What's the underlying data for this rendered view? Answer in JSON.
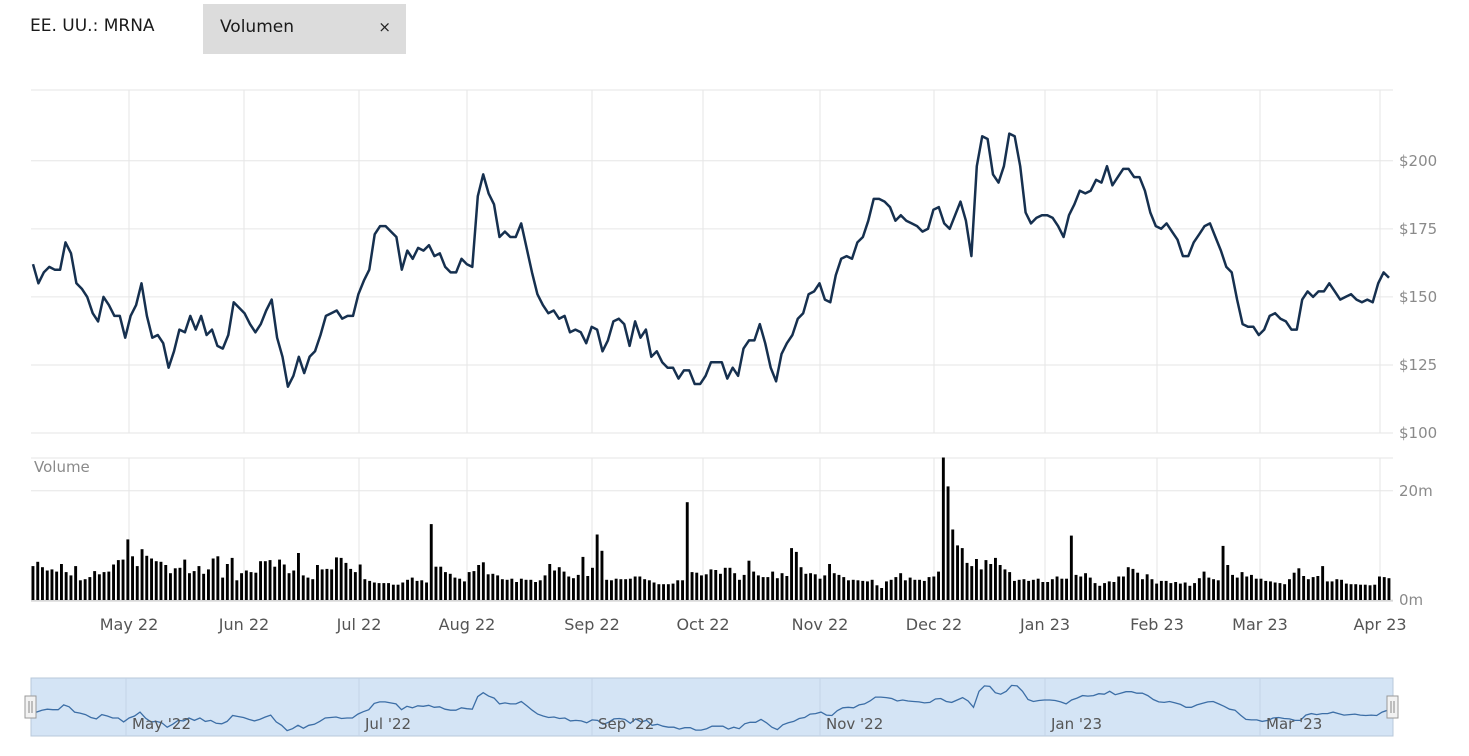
{
  "header": {
    "ticker": "EE. UU.: MRNA",
    "indicator_label": "Volumen",
    "indicator_close": "×"
  },
  "colors": {
    "price_line": "#16304f",
    "volume_bar": "#000000",
    "navigator_fill": "#d4e4f5",
    "navigator_line": "#3c6ea6"
  },
  "chart_data": [
    {
      "type": "line",
      "series": [
        {
          "name": "",
          "values": [
            162,
            155,
            159,
            161,
            160,
            160,
            170,
            166,
            155,
            153,
            150,
            144,
            141,
            150,
            147,
            143,
            143,
            135,
            143,
            147,
            155,
            143,
            135,
            136,
            133,
            124,
            130,
            138,
            137,
            143,
            138,
            143,
            136,
            138,
            132,
            131,
            136,
            148,
            146,
            144,
            140,
            137,
            140,
            145,
            149,
            135,
            128,
            117,
            121,
            128,
            122,
            128,
            130,
            136,
            143,
            144,
            145,
            142,
            143,
            143,
            151,
            156,
            160,
            173,
            176,
            176,
            174,
            172,
            160,
            167,
            164,
            168,
            167,
            169,
            165,
            166,
            161,
            159,
            159,
            164,
            162,
            161,
            187,
            195,
            188,
            184,
            172,
            174,
            172,
            172,
            177,
            168,
            159,
            151,
            147,
            144,
            145,
            142,
            143,
            137,
            138,
            137,
            133,
            139,
            138,
            130,
            134,
            141,
            142,
            140,
            132,
            141,
            135,
            138,
            128,
            130,
            126,
            124,
            124,
            120,
            123,
            123,
            118,
            118,
            121,
            126,
            126,
            126,
            120,
            124,
            121,
            131,
            134,
            134,
            140,
            133,
            124,
            119,
            129,
            133,
            136,
            142,
            144,
            151,
            152,
            155,
            149,
            148,
            158,
            164,
            165,
            164,
            170,
            172,
            178,
            186,
            186,
            185,
            183,
            178,
            180,
            178,
            177,
            176,
            174,
            175,
            182,
            183,
            177,
            175,
            180,
            185,
            178,
            165,
            198,
            209,
            208,
            195,
            192,
            198,
            210,
            209,
            198,
            181,
            177,
            179,
            180,
            180,
            179,
            176,
            172,
            180,
            184,
            189,
            188,
            189,
            193,
            192,
            198,
            191,
            194,
            197,
            197,
            194,
            194,
            189,
            181,
            176,
            175,
            177,
            174,
            171,
            165,
            165,
            170,
            173,
            176,
            177,
            172,
            167,
            161,
            159,
            149,
            140,
            139,
            139,
            136,
            138,
            143,
            144,
            142,
            141,
            138,
            138,
            149,
            152,
            150,
            152,
            152,
            155,
            152,
            149,
            150,
            151,
            149,
            148,
            149,
            148,
            155,
            159,
            157
          ]
        }
      ],
      "x_range": [
        "2022-04-08",
        "2023-04-03"
      ],
      "x_ticks": [
        "May 22",
        "Jun 22",
        "Jul 22",
        "Aug 22",
        "Sep 22",
        "Oct 22",
        "Nov 22",
        "Dec 22",
        "Jan 23",
        "Feb 23",
        "Mar 23",
        "Apr 23"
      ],
      "y_ticks": [
        "$100",
        "$125",
        "$150",
        "$175",
        "$200"
      ],
      "ylim": [
        100,
        226
      ],
      "grid": true,
      "legend": false
    },
    {
      "type": "bar",
      "title": "Volume",
      "y_ticks": [
        "0m",
        "20m"
      ],
      "ylim": [
        0,
        26
      ],
      "unit": "millions",
      "series": [
        {
          "name": "",
          "values": [
            6.2,
            7,
            6,
            5.4,
            5.6,
            5.2,
            6.6,
            5.1,
            4.5,
            6.2,
            3.6,
            3.8,
            4.2,
            5.3,
            4.7,
            5.1,
            5.2,
            6.5,
            7.3,
            7.4,
            11.1,
            8,
            6.2,
            9.3,
            8.1,
            7.6,
            7.1,
            7,
            6.4,
            4.9,
            5.8,
            5.9,
            7.4,
            4.9,
            5.3,
            6.2,
            4.8,
            5.6,
            7.6,
            8,
            4.1,
            6.6,
            7.7,
            3.6,
            4.9,
            5.4,
            5.1,
            5,
            7.1,
            7.1,
            7.3,
            6.1,
            7.4,
            6.5,
            4.9,
            5.4,
            8.6,
            4.5,
            4.1,
            3.8,
            6.4,
            5.6,
            5.7,
            5.6,
            7.8,
            7.7,
            6.8,
            5.7,
            5.1,
            6.5,
            3.8,
            3.5,
            3.2,
            3.1,
            3.1,
            3.1,
            2.8,
            2.8,
            3.2,
            3.7,
            4.1,
            3.5,
            3.6,
            3.2,
            13.9,
            6.1,
            6.1,
            5.1,
            4.8,
            4.1,
            3.9,
            3.4,
            5.1,
            5.3,
            6.4,
            6.9,
            4.7,
            4.8,
            4.5,
            3.8,
            3.7,
            3.9,
            3.3,
            3.9,
            3.7,
            3.7,
            3.3,
            3.6,
            4.5,
            6.6,
            5.4,
            6,
            5.2,
            4.3,
            4,
            4.6,
            7.9,
            4.4,
            5.9,
            12,
            9,
            3.7,
            3.6,
            3.9,
            3.8,
            3.8,
            3.9,
            4.3,
            4.3,
            3.8,
            3.6,
            3.2,
            2.9,
            2.9,
            2.9,
            3,
            3.6,
            3.6,
            17.9,
            5.1,
            5,
            4.5,
            4.7,
            5.6,
            5.5,
            4.8,
            5.9,
            5.9,
            4.9,
            3.7,
            4.6,
            7.2,
            5.2,
            4.5,
            4.2,
            4.2,
            5.2,
            4,
            4.9,
            4.4,
            9.5,
            8.8,
            6,
            4.8,
            4.9,
            4.7,
            3.9,
            4.5,
            6.6,
            4.9,
            4.6,
            4.2,
            3.6,
            3.7,
            3.6,
            3.5,
            3.4,
            3.7,
            2.7,
            2.2,
            3.4,
            3.7,
            4.2,
            4.9,
            3.6,
            4.1,
            3.7,
            3.7,
            3.5,
            4.2,
            4.3,
            5.2,
            26.1,
            20.8,
            12.9,
            10,
            9.5,
            6.8,
            6.2,
            7.5,
            5.6,
            7.3,
            6.6,
            7.7,
            6.4,
            5.6,
            5.1,
            3.5,
            3.7,
            3.8,
            3.5,
            3.7,
            3.9,
            3.3,
            3.3,
            3.8,
            4.3,
            3.9,
            3.9,
            11.8,
            4.6,
            4.3,
            4.9,
            4.1,
            3.1,
            2.6,
            3.1,
            3.4,
            3.3,
            4.3,
            4.3,
            6,
            5.7,
            5,
            3.8,
            4.7,
            3.8,
            3,
            3.5,
            3.5,
            3.1,
            3.3,
            3,
            3.2,
            2.6,
            3.1,
            4,
            5.2,
            4.1,
            3.8,
            3.6,
            9.9,
            6.4,
            4.6,
            4.1,
            5.1,
            4.3,
            4.6,
            3.9,
            3.9,
            3.5,
            3.4,
            3.2,
            3.1,
            2.9,
            3.8,
            5,
            5.8,
            4.4,
            3.8,
            4.2,
            4.4,
            6.2,
            3.4,
            3.4,
            3.8,
            3.7,
            3,
            2.9,
            2.9,
            2.8,
            2.8,
            2.7,
            2.8,
            4.3,
            4.2,
            4
          ]
        }
      ],
      "grid": true,
      "legend": false
    },
    {
      "type": "area",
      "title": "navigator",
      "x_ticks": [
        "May '22",
        "Jul '22",
        "Sep '22",
        "Nov '22",
        "Jan '23",
        "Mar '23"
      ],
      "selected_range": "full"
    }
  ]
}
